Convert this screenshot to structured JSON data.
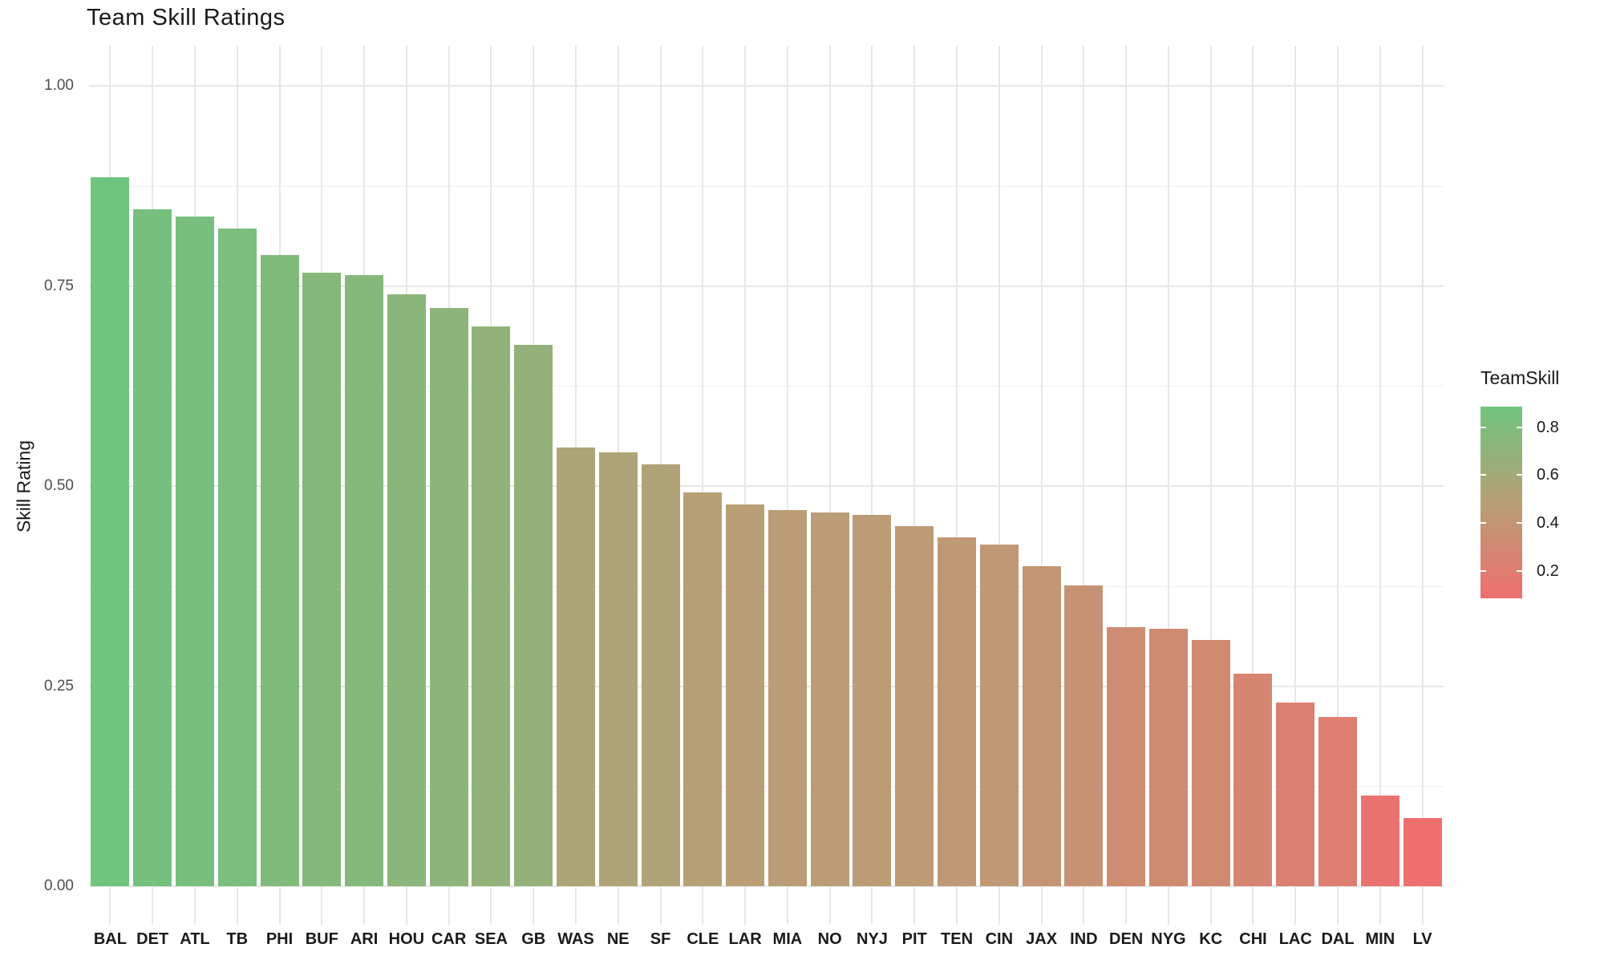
{
  "title": "Team Skill Ratings",
  "y_axis": {
    "label": "Skill Rating",
    "ticks": [
      {
        "label": "1.00",
        "value": 1.0
      },
      {
        "label": "0.75",
        "value": 0.75
      },
      {
        "label": "0.50",
        "value": 0.5
      },
      {
        "label": "0.25",
        "value": 0.25
      },
      {
        "label": "0.00",
        "value": 0.0
      }
    ]
  },
  "legend": {
    "title": "TeamSkill",
    "ticks": [
      {
        "label": "0.8",
        "value": 0.8
      },
      {
        "label": "0.6",
        "value": 0.6
      },
      {
        "label": "0.4",
        "value": 0.4
      },
      {
        "label": "0.2",
        "value": 0.2
      }
    ]
  },
  "chart_data": {
    "type": "bar",
    "title": "Team Skill Ratings",
    "xlabel": "",
    "ylabel": "Skill Rating",
    "categories": [
      "BAL",
      "DET",
      "ATL",
      "TB",
      "PHI",
      "BUF",
      "ARI",
      "HOU",
      "CAR",
      "SEA",
      "GB",
      "WAS",
      "NE",
      "SF",
      "CLE",
      "LAR",
      "MIA",
      "NO",
      "NYJ",
      "PIT",
      "TEN",
      "CIN",
      "JAX",
      "IND",
      "DEN",
      "NYG",
      "KC",
      "CHI",
      "LAC",
      "DAL",
      "MIN",
      "LV"
    ],
    "values": [
      0.886,
      0.846,
      0.837,
      0.822,
      0.789,
      0.767,
      0.764,
      0.739,
      0.722,
      0.699,
      0.676,
      0.548,
      0.542,
      0.527,
      0.492,
      0.477,
      0.47,
      0.467,
      0.464,
      0.45,
      0.436,
      0.427,
      0.4,
      0.376,
      0.324,
      0.322,
      0.308,
      0.266,
      0.229,
      0.211,
      0.113,
      0.085
    ],
    "ylim": [
      0,
      1.05
    ],
    "y_major_breaks": [
      0,
      0.25,
      0.5,
      0.75,
      1.0
    ],
    "y_minor_breaks": [
      0.125,
      0.375,
      0.625,
      0.875
    ],
    "grid": true,
    "legend_position": "right",
    "colors": {
      "gradient_high": "#6fc47e",
      "gradient_mid": "#b89f76",
      "gradient_low": "#ee6f6d",
      "gridline": "#e7e7e7",
      "axis_text": "#4d4d4d",
      "text": "#1a1a1a"
    },
    "color_domain": [
      0.085,
      0.886
    ]
  }
}
